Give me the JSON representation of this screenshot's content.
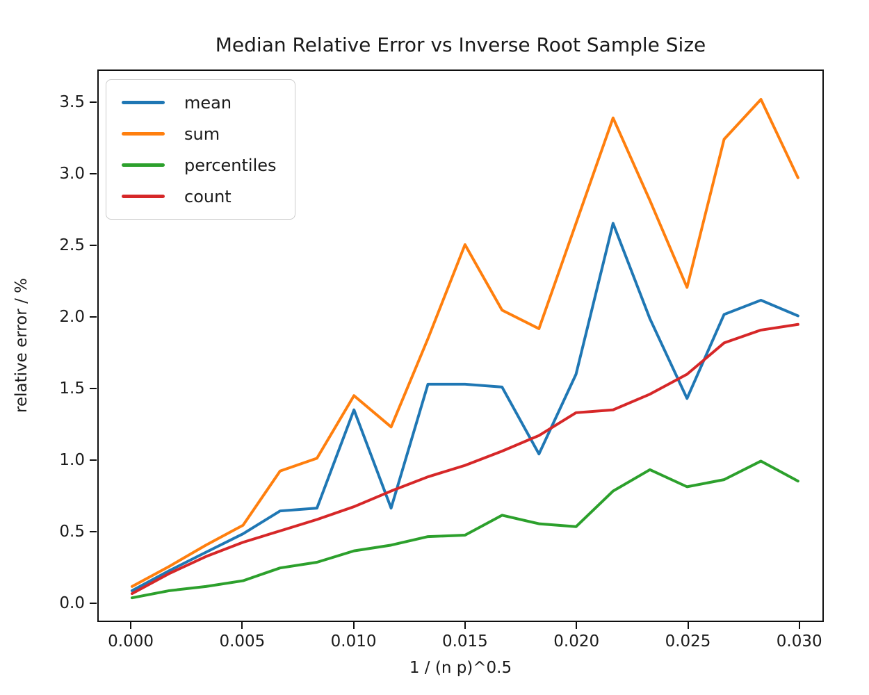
{
  "chart_data": {
    "type": "line",
    "title": "Median Relative Error vs Inverse Root Sample Size",
    "xlabel": "1 / (n p)^0.5",
    "ylabel": "relative error / %",
    "grid": false,
    "legend_position": "upper left",
    "xlim": [
      -0.0015,
      0.0311
    ],
    "ylim": [
      -0.13,
      3.73
    ],
    "x": [
      0.0,
      0.00167,
      0.00333,
      0.005,
      0.00667,
      0.00833,
      0.01,
      0.01167,
      0.01333,
      0.015,
      0.01667,
      0.01833,
      0.02,
      0.02167,
      0.02333,
      0.025,
      0.02667,
      0.02833,
      0.03
    ],
    "series": [
      {
        "name": "mean",
        "color": "#1f77b4",
        "values": [
          0.08,
          0.22,
          0.35,
          0.48,
          0.64,
          0.66,
          1.35,
          0.66,
          1.53,
          1.53,
          1.51,
          1.04,
          1.6,
          2.66,
          1.99,
          1.43,
          2.02,
          2.12,
          2.01
        ]
      },
      {
        "name": "sum",
        "color": "#ff7f0e",
        "values": [
          0.11,
          0.25,
          0.4,
          0.54,
          0.92,
          1.01,
          1.45,
          1.23,
          1.85,
          2.51,
          2.05,
          1.92,
          2.66,
          3.4,
          2.82,
          2.21,
          3.25,
          3.53,
          2.98
        ]
      },
      {
        "name": "percentiles",
        "color": "#2ca02c",
        "values": [
          0.03,
          0.08,
          0.11,
          0.15,
          0.24,
          0.28,
          0.36,
          0.4,
          0.46,
          0.47,
          0.61,
          0.55,
          0.53,
          0.78,
          0.93,
          0.81,
          0.86,
          0.99,
          0.85
        ]
      },
      {
        "name": "count",
        "color": "#d62728",
        "values": [
          0.06,
          0.2,
          0.32,
          0.42,
          0.5,
          0.58,
          0.67,
          0.78,
          0.88,
          0.96,
          1.06,
          1.17,
          1.33,
          1.35,
          1.46,
          1.6,
          1.82,
          1.91,
          1.95
        ]
      }
    ],
    "xticks": {
      "values": [
        0.0,
        0.005,
        0.01,
        0.015,
        0.02,
        0.025,
        0.03
      ],
      "labels": [
        "0.000",
        "0.005",
        "0.010",
        "0.015",
        "0.020",
        "0.025",
        "0.030"
      ]
    },
    "yticks": {
      "values": [
        0.0,
        0.5,
        1.0,
        1.5,
        2.0,
        2.5,
        3.0,
        3.5
      ],
      "labels": [
        "0.0",
        "0.5",
        "1.0",
        "1.5",
        "2.0",
        "2.5",
        "3.0",
        "3.5"
      ]
    }
  }
}
